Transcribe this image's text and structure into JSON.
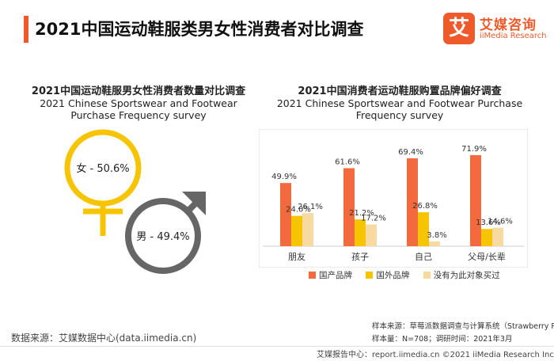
{
  "page_title": "2021中国运动鞋服类男女性消费者对比调查",
  "logo": {
    "mark": "艾",
    "name_cn": "艾媒咨询",
    "name_en": "iiMedia Research"
  },
  "colors": {
    "accent": "#ef5a2b",
    "female": "#f6c400",
    "male": "#666666",
    "domestic": "#f26a3d",
    "foreign": "#f6c400",
    "none": "#f7d9a2"
  },
  "chart_data": [
    {
      "type": "pie",
      "title": "2021中国运动鞋服男女性消费者数量对比调查",
      "subtitle": "2021 Chinese Sportswear and Footwear Purchase Frequency survey",
      "categories": [
        "女",
        "男"
      ],
      "values": [
        50.6,
        49.4
      ],
      "labels": [
        "女 - 50.6%",
        "男 - 49.4%"
      ]
    },
    {
      "type": "bar",
      "title": "2021中国消费者运动鞋服购置品牌偏好调查",
      "subtitle": "2021 Chinese Sportswear and Footwear Purchase Frequency survey",
      "categories": [
        "朋友",
        "孩子",
        "自己",
        "父母/长辈"
      ],
      "series": [
        {
          "name": "国产品牌",
          "values": [
            49.9,
            61.6,
            69.4,
            71.9
          ]
        },
        {
          "name": "国外品牌",
          "values": [
            24.0,
            21.2,
            26.8,
            13.6
          ]
        },
        {
          "name": "没有为此对象买过",
          "values": [
            26.1,
            17.2,
            3.8,
            14.6
          ]
        }
      ],
      "value_labels": [
        [
          "49.9%",
          "24.0%",
          "26.1%"
        ],
        [
          "61.6%",
          "21.2%",
          "17.2%"
        ],
        [
          "69.4%",
          "26.8%",
          "3.8%"
        ],
        [
          "71.9%",
          "13.6%",
          "14.6%"
        ]
      ],
      "ylim": [
        0,
        80
      ],
      "legend": "bottom"
    }
  ],
  "notes": {
    "source_line": "样本来源：草莓派数据调查与计算系统（Strawberry Pie）",
    "sample_line": "样本量：N=708；调研时间：2021年3月"
  },
  "data_source": "数据来源：艾媒数据中心(data.iimedia.cn)",
  "footer": "艾媒报告中心：report.iimedia.cn    ©2021  iiMedia Research  Inc"
}
